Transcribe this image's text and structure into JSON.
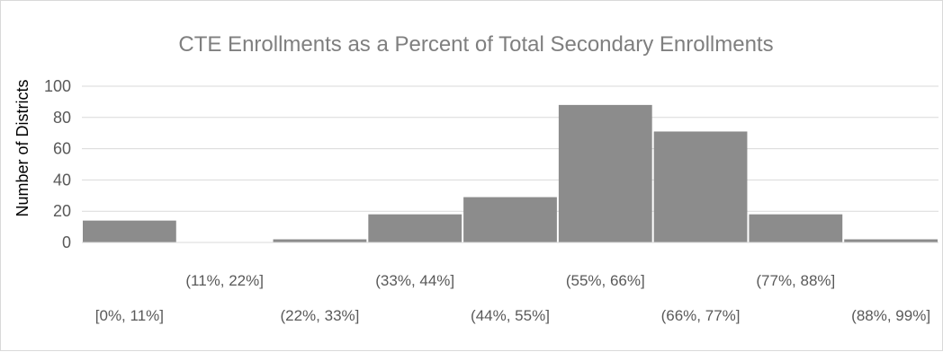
{
  "chart_data": {
    "type": "bar",
    "title": "CTE Enrollments as a Percent of Total  Secondary Enrollments",
    "xlabel": "",
    "ylabel": "Number of Districts",
    "categories": [
      "[0%, 11%]",
      "(11%, 22%]",
      "(22%, 33%]",
      "(33%, 44%]",
      "(44%, 55%]",
      "(55%, 66%]",
      "(66%, 77%]",
      "(77%, 88%]",
      "(88%, 99%]"
    ],
    "values": [
      14,
      0,
      2,
      18,
      29,
      88,
      71,
      18,
      2
    ],
    "ylim": [
      0,
      100
    ],
    "yticks": [
      0,
      20,
      40,
      60,
      80,
      100
    ],
    "grid": true,
    "legend": "none",
    "bar_color": "#8c8c8c",
    "bar_gap": "none (histogram)"
  }
}
